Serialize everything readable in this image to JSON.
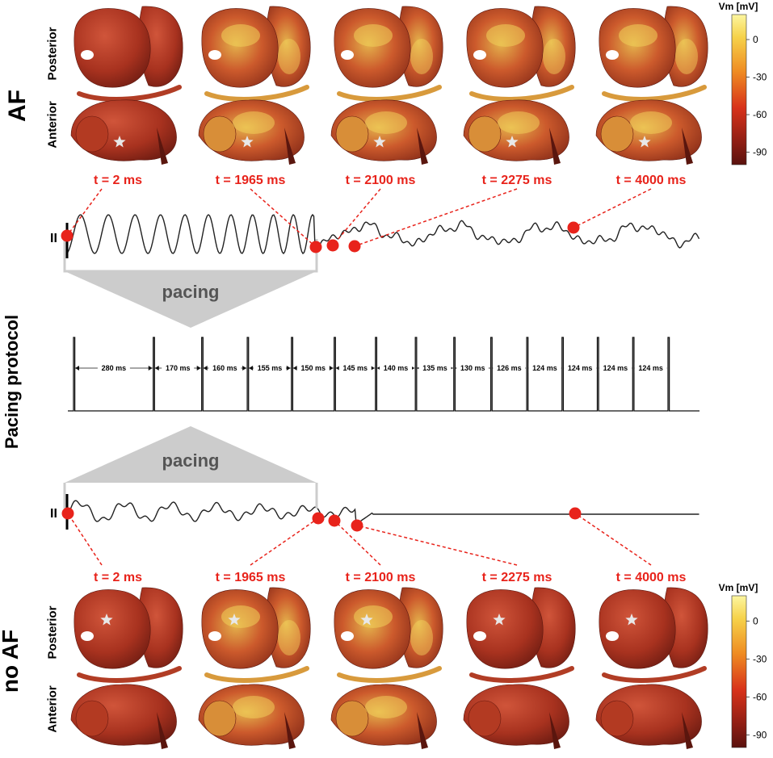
{
  "groups": {
    "top": "AF",
    "bottom": "no AF",
    "middle": "Pacing protocol"
  },
  "views": {
    "posterior": "Posterior",
    "anterior": "Anterior"
  },
  "pacing_label": "pacing",
  "lead_label": "II",
  "time_labels": [
    "t = 2 ms",
    "t = 1965 ms",
    "t = 2100 ms",
    "t = 2275 ms",
    "t = 4000 ms"
  ],
  "pacing_intervals": [
    "280 ms",
    "170 ms",
    "160 ms",
    "155 ms",
    "150 ms",
    "145 ms",
    "140 ms",
    "135 ms",
    "130 ms",
    "126 ms",
    "124 ms",
    "124 ms",
    "124 ms",
    "124 ms"
  ],
  "colorbar": {
    "title": "Vm [mV]",
    "ticks": [
      "0",
      "-30",
      "-60",
      "-90"
    ],
    "range": [
      -100,
      20
    ]
  },
  "colors": {
    "marker": "#e8231b",
    "leader": "#e8231b",
    "pacing_fill": "#cccccc",
    "pacing_text": "#555555",
    "tissue_dark": "#8c2a1c",
    "tissue_mid": "#c8442a",
    "tissue_bright": "#f4d860"
  }
}
